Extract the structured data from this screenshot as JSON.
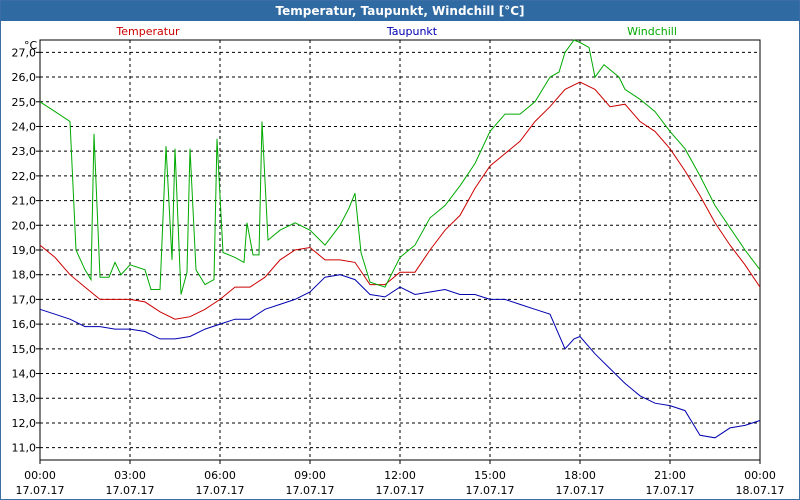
{
  "window": {
    "title": "Temperatur, Taupunkt, Windchill [°C]"
  },
  "chart_data": {
    "type": "line",
    "title": "Temperatur, Taupunkt, Windchill [°C]",
    "ylabel": "°C",
    "ylim": [
      10.5,
      27.5
    ],
    "xlim": [
      0,
      24
    ],
    "yticks": [
      "11,0",
      "12,0",
      "13,0",
      "14,0",
      "15,0",
      "16,0",
      "17,0",
      "18,0",
      "19,0",
      "20,0",
      "21,0",
      "22,0",
      "23,0",
      "24,0",
      "25,0",
      "26,0",
      "27,0"
    ],
    "xticks": [
      {
        "time": "00:00",
        "date": "17.07.17"
      },
      {
        "time": "03:00",
        "date": "17.07.17"
      },
      {
        "time": "06:00",
        "date": "17.07.17"
      },
      {
        "time": "09:00",
        "date": "17.07.17"
      },
      {
        "time": "12:00",
        "date": "17.07.17"
      },
      {
        "time": "15:00",
        "date": "17.07.17"
      },
      {
        "time": "18:00",
        "date": "17.07.17"
      },
      {
        "time": "21:00",
        "date": "17.07.17"
      },
      {
        "time": "00:00",
        "date": "18.07.17"
      }
    ],
    "grid": true,
    "series": [
      {
        "name": "Temperatur",
        "color": "#cc0000",
        "points": [
          [
            0,
            19.2
          ],
          [
            0.5,
            18.7
          ],
          [
            1,
            18.0
          ],
          [
            1.5,
            17.5
          ],
          [
            2,
            17.0
          ],
          [
            2.5,
            17.0
          ],
          [
            3,
            17.0
          ],
          [
            3.5,
            16.9
          ],
          [
            4,
            16.5
          ],
          [
            4.5,
            16.2
          ],
          [
            5,
            16.3
          ],
          [
            5.5,
            16.6
          ],
          [
            6,
            17.0
          ],
          [
            6.5,
            17.5
          ],
          [
            7,
            17.5
          ],
          [
            7.5,
            17.9
          ],
          [
            8,
            18.6
          ],
          [
            8.5,
            19.0
          ],
          [
            9,
            19.1
          ],
          [
            9.5,
            18.6
          ],
          [
            10,
            18.6
          ],
          [
            10.5,
            18.5
          ],
          [
            11,
            17.6
          ],
          [
            11.5,
            17.6
          ],
          [
            12,
            18.1
          ],
          [
            12.5,
            18.1
          ],
          [
            13,
            19.0
          ],
          [
            13.5,
            19.8
          ],
          [
            14,
            20.4
          ],
          [
            14.5,
            21.5
          ],
          [
            15,
            22.4
          ],
          [
            15.5,
            22.9
          ],
          [
            16,
            23.4
          ],
          [
            16.5,
            24.2
          ],
          [
            17,
            24.8
          ],
          [
            17.5,
            25.5
          ],
          [
            18,
            25.8
          ],
          [
            18.5,
            25.5
          ],
          [
            19,
            24.8
          ],
          [
            19.5,
            24.9
          ],
          [
            20,
            24.2
          ],
          [
            20.5,
            23.8
          ],
          [
            21,
            23.1
          ],
          [
            21.5,
            22.2
          ],
          [
            22,
            21.2
          ],
          [
            22.5,
            20.1
          ],
          [
            23,
            19.2
          ],
          [
            23.5,
            18.4
          ],
          [
            24,
            17.5
          ]
        ]
      },
      {
        "name": "Taupunkt",
        "color": "#0000b0",
        "points": [
          [
            0,
            16.6
          ],
          [
            0.5,
            16.4
          ],
          [
            1,
            16.2
          ],
          [
            1.5,
            15.9
          ],
          [
            2,
            15.9
          ],
          [
            2.5,
            15.8
          ],
          [
            3,
            15.8
          ],
          [
            3.5,
            15.7
          ],
          [
            4,
            15.4
          ],
          [
            4.5,
            15.4
          ],
          [
            5,
            15.5
          ],
          [
            5.5,
            15.8
          ],
          [
            6,
            16.0
          ],
          [
            6.5,
            16.2
          ],
          [
            7,
            16.2
          ],
          [
            7.5,
            16.6
          ],
          [
            8,
            16.8
          ],
          [
            8.5,
            17.0
          ],
          [
            9,
            17.3
          ],
          [
            9.5,
            17.9
          ],
          [
            10,
            18.0
          ],
          [
            10.5,
            17.8
          ],
          [
            11,
            17.2
          ],
          [
            11.5,
            17.1
          ],
          [
            12,
            17.5
          ],
          [
            12.5,
            17.2
          ],
          [
            13,
            17.3
          ],
          [
            13.5,
            17.4
          ],
          [
            14,
            17.2
          ],
          [
            14.5,
            17.2
          ],
          [
            15,
            17.0
          ],
          [
            15.5,
            17.0
          ],
          [
            16,
            16.8
          ],
          [
            16.5,
            16.6
          ],
          [
            17,
            16.4
          ],
          [
            17.5,
            15.0
          ],
          [
            17.8,
            15.4
          ],
          [
            18,
            15.5
          ],
          [
            18.5,
            14.8
          ],
          [
            19,
            14.2
          ],
          [
            19.5,
            13.6
          ],
          [
            20,
            13.1
          ],
          [
            20.5,
            12.8
          ],
          [
            21,
            12.7
          ],
          [
            21.5,
            12.5
          ],
          [
            22,
            11.5
          ],
          [
            22.5,
            11.4
          ],
          [
            23,
            11.8
          ],
          [
            23.5,
            11.9
          ],
          [
            24,
            12.1
          ]
        ]
      },
      {
        "name": "Windchill",
        "color": "#00aa00",
        "points": [
          [
            0,
            25.0
          ],
          [
            0.5,
            24.6
          ],
          [
            1,
            24.2
          ],
          [
            1.2,
            19.0
          ],
          [
            1.5,
            18.2
          ],
          [
            1.7,
            17.8
          ],
          [
            1.8,
            23.7
          ],
          [
            2,
            17.9
          ],
          [
            2.3,
            17.9
          ],
          [
            2.5,
            18.5
          ],
          [
            2.7,
            18.0
          ],
          [
            3,
            18.4
          ],
          [
            3.5,
            18.2
          ],
          [
            3.7,
            17.4
          ],
          [
            4,
            17.4
          ],
          [
            4.2,
            23.2
          ],
          [
            4.4,
            18.6
          ],
          [
            4.5,
            23.1
          ],
          [
            4.7,
            17.2
          ],
          [
            4.9,
            18.1
          ],
          [
            5.0,
            23.1
          ],
          [
            5.2,
            18.2
          ],
          [
            5.5,
            17.6
          ],
          [
            5.8,
            17.8
          ],
          [
            5.9,
            23.5
          ],
          [
            6.1,
            18.9
          ],
          [
            6.5,
            18.7
          ],
          [
            6.8,
            18.5
          ],
          [
            6.9,
            20.1
          ],
          [
            7.1,
            18.8
          ],
          [
            7.3,
            18.8
          ],
          [
            7.4,
            24.2
          ],
          [
            7.6,
            19.4
          ],
          [
            8,
            19.8
          ],
          [
            8.5,
            20.1
          ],
          [
            9,
            19.8
          ],
          [
            9.5,
            19.2
          ],
          [
            10,
            20.0
          ],
          [
            10.3,
            20.7
          ],
          [
            10.5,
            21.3
          ],
          [
            10.7,
            18.9
          ],
          [
            11,
            17.7
          ],
          [
            11.5,
            17.5
          ],
          [
            12,
            18.7
          ],
          [
            12.5,
            19.2
          ],
          [
            13,
            20.3
          ],
          [
            13.5,
            20.8
          ],
          [
            14,
            21.6
          ],
          [
            14.5,
            22.5
          ],
          [
            15,
            23.8
          ],
          [
            15.5,
            24.5
          ],
          [
            16,
            24.5
          ],
          [
            16.5,
            25.0
          ],
          [
            17,
            26.0
          ],
          [
            17.3,
            26.2
          ],
          [
            17.5,
            27.0
          ],
          [
            17.8,
            27.5
          ],
          [
            18,
            27.4
          ],
          [
            18.3,
            27.2
          ],
          [
            18.5,
            26.0
          ],
          [
            18.8,
            26.5
          ],
          [
            19,
            26.3
          ],
          [
            19.3,
            26.0
          ],
          [
            19.5,
            25.5
          ],
          [
            20,
            25.1
          ],
          [
            20.5,
            24.6
          ],
          [
            21,
            23.8
          ],
          [
            21.5,
            23.1
          ],
          [
            22,
            22.0
          ],
          [
            22.5,
            20.8
          ],
          [
            23,
            19.9
          ],
          [
            23.5,
            19.0
          ],
          [
            24,
            18.2
          ]
        ]
      }
    ]
  }
}
